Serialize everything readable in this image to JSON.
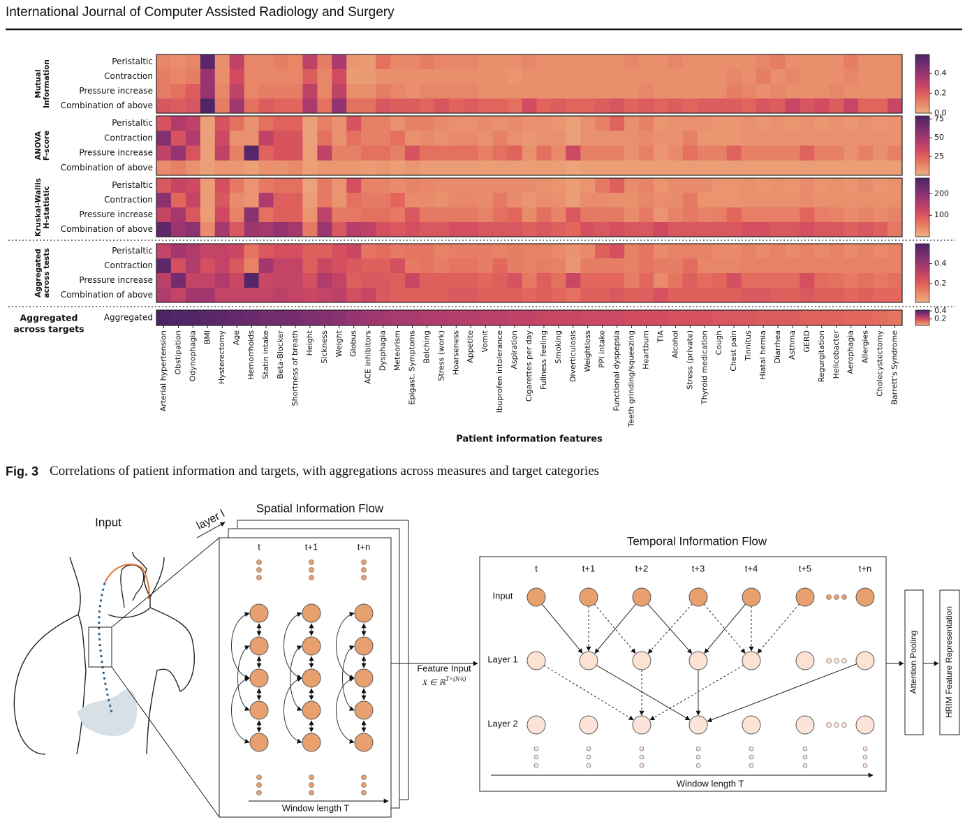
{
  "header": {
    "journal": "International Journal of Computer Assisted Radiology and Surgery"
  },
  "chart_data": [
    {
      "type": "heatmap",
      "group_label": [
        "Mutual",
        "Information"
      ],
      "colormap": "flare",
      "rows": [
        "Peristaltic",
        "Contraction",
        "Pressure increase",
        "Combination of above"
      ],
      "clim": [
        0,
        0.59
      ],
      "cticks": [
        {
          "value": 0,
          "label": "0.0"
        },
        0.2,
        0.4
      ],
      "values": [
        [
          0.1,
          0.08,
          0.1,
          0.55,
          0.08,
          0.3,
          0.1,
          0.1,
          0.12,
          0.1,
          0.3,
          0.12,
          0.35,
          0.06,
          0.05,
          0.15,
          0.1,
          0.1,
          0.12,
          0.1,
          0.1,
          0.1,
          0.08,
          0.08,
          0.08,
          0.1,
          0.08,
          0.08,
          0.08,
          0.08,
          0.08,
          0.08,
          0.1,
          0.08,
          0.08,
          0.1,
          0.08,
          0.08,
          0.08,
          0.08,
          0.08,
          0.1,
          0.12,
          0.08,
          0.08,
          0.08,
          0.08,
          0.12,
          0.08,
          0.08,
          0.08
        ],
        [
          0.12,
          0.1,
          0.12,
          0.4,
          0.08,
          0.25,
          0.1,
          0.1,
          0.1,
          0.1,
          0.2,
          0.1,
          0.25,
          0.05,
          0.05,
          0.08,
          0.08,
          0.08,
          0.08,
          0.08,
          0.08,
          0.08,
          0.08,
          0.08,
          0.06,
          0.08,
          0.08,
          0.08,
          0.08,
          0.08,
          0.08,
          0.08,
          0.08,
          0.08,
          0.08,
          0.08,
          0.08,
          0.08,
          0.08,
          0.1,
          0.08,
          0.12,
          0.08,
          0.1,
          0.08,
          0.08,
          0.08,
          0.1,
          0.08,
          0.08,
          0.08
        ],
        [
          0.12,
          0.15,
          0.2,
          0.4,
          0.1,
          0.3,
          0.1,
          0.12,
          0.12,
          0.12,
          0.3,
          0.1,
          0.3,
          0.08,
          0.08,
          0.12,
          0.1,
          0.08,
          0.1,
          0.1,
          0.1,
          0.1,
          0.08,
          0.08,
          0.08,
          0.08,
          0.08,
          0.08,
          0.08,
          0.08,
          0.08,
          0.08,
          0.08,
          0.1,
          0.08,
          0.08,
          0.08,
          0.08,
          0.08,
          0.12,
          0.1,
          0.08,
          0.1,
          0.08,
          0.08,
          0.08,
          0.1,
          0.08,
          0.08,
          0.08,
          0.08
        ],
        [
          0.22,
          0.2,
          0.22,
          0.58,
          0.12,
          0.38,
          0.15,
          0.2,
          0.18,
          0.18,
          0.35,
          0.15,
          0.42,
          0.15,
          0.15,
          0.22,
          0.2,
          0.2,
          0.18,
          0.22,
          0.18,
          0.2,
          0.18,
          0.18,
          0.15,
          0.25,
          0.18,
          0.2,
          0.18,
          0.18,
          0.2,
          0.22,
          0.18,
          0.2,
          0.18,
          0.2,
          0.18,
          0.2,
          0.2,
          0.2,
          0.18,
          0.22,
          0.2,
          0.28,
          0.22,
          0.25,
          0.2,
          0.28,
          0.18,
          0.18,
          0.28
        ]
      ]
    },
    {
      "type": "heatmap",
      "group_label": [
        "ANOVA",
        "F-score"
      ],
      "colormap": "flare",
      "rows": [
        "Peristaltic",
        "Contraction",
        "Pressure increase",
        "Combination of above"
      ],
      "clim": [
        0,
        79
      ],
      "cticks": [
        25,
        50,
        75
      ],
      "values": [
        [
          30,
          45,
          40,
          5,
          30,
          20,
          10,
          20,
          25,
          25,
          5,
          15,
          10,
          30,
          15,
          15,
          10,
          15,
          15,
          12,
          10,
          10,
          12,
          10,
          12,
          10,
          10,
          8,
          5,
          10,
          15,
          25,
          10,
          15,
          8,
          10,
          10,
          10,
          8,
          8,
          10,
          8,
          10,
          8,
          10,
          8,
          10,
          8,
          10,
          8,
          10
        ],
        [
          60,
          30,
          45,
          5,
          35,
          10,
          10,
          40,
          30,
          30,
          5,
          20,
          10,
          20,
          15,
          15,
          20,
          10,
          12,
          10,
          12,
          12,
          10,
          15,
          10,
          8,
          10,
          10,
          5,
          10,
          10,
          10,
          10,
          12,
          10,
          10,
          15,
          8,
          8,
          8,
          10,
          10,
          10,
          10,
          10,
          10,
          10,
          10,
          10,
          10,
          10
        ],
        [
          40,
          55,
          30,
          5,
          40,
          15,
          75,
          25,
          30,
          30,
          5,
          40,
          15,
          15,
          20,
          20,
          15,
          30,
          20,
          20,
          20,
          20,
          15,
          20,
          25,
          10,
          20,
          12,
          35,
          15,
          15,
          15,
          10,
          15,
          8,
          12,
          20,
          15,
          15,
          25,
          15,
          15,
          15,
          15,
          25,
          15,
          15,
          10,
          15,
          10,
          15
        ],
        [
          12,
          15,
          10,
          5,
          8,
          8,
          5,
          10,
          10,
          12,
          5,
          8,
          8,
          8,
          6,
          8,
          6,
          8,
          6,
          6,
          6,
          6,
          6,
          6,
          6,
          6,
          6,
          6,
          4,
          6,
          6,
          6,
          6,
          6,
          6,
          6,
          6,
          6,
          6,
          6,
          6,
          6,
          6,
          6,
          6,
          6,
          6,
          6,
          6,
          6,
          6
        ]
      ]
    },
    {
      "type": "heatmap",
      "group_label": [
        "Kruskal-Wallis",
        "H-statistic"
      ],
      "colormap": "flare",
      "rows": [
        "Peristaltic",
        "Contraction",
        "Pressure increase",
        "Combination of above"
      ],
      "clim": [
        0,
        273
      ],
      "cticks": [
        100,
        200
      ],
      "values": [
        [
          100,
          130,
          120,
          20,
          110,
          60,
          30,
          60,
          70,
          70,
          15,
          60,
          30,
          110,
          50,
          50,
          40,
          50,
          45,
          40,
          40,
          40,
          40,
          40,
          40,
          40,
          35,
          30,
          20,
          30,
          60,
          90,
          40,
          50,
          30,
          40,
          40,
          40,
          30,
          30,
          35,
          30,
          35,
          30,
          40,
          30,
          35,
          30,
          40,
          30,
          35
        ],
        [
          200,
          80,
          130,
          20,
          100,
          40,
          30,
          160,
          90,
          90,
          20,
          60,
          30,
          70,
          60,
          60,
          80,
          40,
          40,
          35,
          45,
          45,
          40,
          60,
          40,
          30,
          40,
          35,
          20,
          40,
          40,
          35,
          35,
          45,
          40,
          40,
          60,
          30,
          30,
          30,
          35,
          35,
          35,
          35,
          40,
          35,
          35,
          35,
          35,
          35,
          35
        ],
        [
          130,
          170,
          100,
          20,
          120,
          50,
          200,
          70,
          90,
          90,
          30,
          140,
          60,
          60,
          70,
          70,
          60,
          100,
          60,
          60,
          60,
          60,
          50,
          70,
          80,
          40,
          70,
          50,
          100,
          60,
          60,
          60,
          40,
          60,
          30,
          50,
          60,
          50,
          55,
          80,
          55,
          55,
          55,
          55,
          80,
          55,
          50,
          40,
          50,
          40,
          50
        ],
        [
          250,
          180,
          200,
          40,
          170,
          100,
          180,
          170,
          190,
          170,
          60,
          180,
          100,
          150,
          140,
          110,
          100,
          110,
          100,
          100,
          110,
          110,
          100,
          100,
          100,
          90,
          100,
          90,
          80,
          110,
          100,
          110,
          100,
          100,
          120,
          100,
          100,
          100,
          100,
          100,
          110,
          110,
          100,
          100,
          110,
          100,
          100,
          90,
          100,
          90,
          60
        ]
      ]
    },
    {
      "type": "heatmap",
      "group_label": [
        "Aggregated",
        "across tests"
      ],
      "colormap": "flare",
      "rows": [
        "Peristaltic",
        "Contraction",
        "Pressure increase",
        "Combination of above"
      ],
      "clim": [
        0.01,
        0.6
      ],
      "cticks": [
        0.2,
        0.4
      ],
      "values": [
        [
          0.3,
          0.38,
          0.35,
          0.3,
          0.3,
          0.28,
          0.15,
          0.22,
          0.25,
          0.25,
          0.2,
          0.2,
          0.25,
          0.28,
          0.15,
          0.17,
          0.14,
          0.15,
          0.15,
          0.12,
          0.13,
          0.13,
          0.13,
          0.12,
          0.13,
          0.12,
          0.12,
          0.1,
          0.08,
          0.1,
          0.2,
          0.25,
          0.12,
          0.15,
          0.1,
          0.12,
          0.12,
          0.12,
          0.1,
          0.1,
          0.12,
          0.1,
          0.12,
          0.1,
          0.12,
          0.1,
          0.12,
          0.1,
          0.12,
          0.1,
          0.12
        ],
        [
          0.55,
          0.25,
          0.35,
          0.25,
          0.3,
          0.22,
          0.12,
          0.38,
          0.3,
          0.3,
          0.2,
          0.28,
          0.25,
          0.22,
          0.2,
          0.2,
          0.25,
          0.14,
          0.15,
          0.13,
          0.15,
          0.15,
          0.13,
          0.18,
          0.13,
          0.12,
          0.13,
          0.12,
          0.07,
          0.13,
          0.13,
          0.13,
          0.12,
          0.15,
          0.13,
          0.13,
          0.17,
          0.11,
          0.11,
          0.11,
          0.12,
          0.12,
          0.12,
          0.12,
          0.12,
          0.12,
          0.12,
          0.12,
          0.12,
          0.12,
          0.12
        ],
        [
          0.32,
          0.5,
          0.3,
          0.3,
          0.35,
          0.28,
          0.58,
          0.28,
          0.3,
          0.3,
          0.25,
          0.35,
          0.3,
          0.2,
          0.22,
          0.22,
          0.2,
          0.28,
          0.2,
          0.2,
          0.2,
          0.2,
          0.18,
          0.2,
          0.24,
          0.14,
          0.2,
          0.16,
          0.28,
          0.18,
          0.18,
          0.18,
          0.13,
          0.18,
          0.1,
          0.15,
          0.2,
          0.17,
          0.18,
          0.25,
          0.17,
          0.17,
          0.17,
          0.17,
          0.25,
          0.17,
          0.16,
          0.14,
          0.16,
          0.14,
          0.16
        ],
        [
          0.35,
          0.3,
          0.38,
          0.38,
          0.3,
          0.3,
          0.3,
          0.3,
          0.32,
          0.3,
          0.28,
          0.3,
          0.32,
          0.25,
          0.28,
          0.22,
          0.2,
          0.2,
          0.2,
          0.2,
          0.22,
          0.22,
          0.2,
          0.2,
          0.2,
          0.18,
          0.2,
          0.18,
          0.16,
          0.2,
          0.2,
          0.22,
          0.2,
          0.2,
          0.24,
          0.2,
          0.2,
          0.2,
          0.2,
          0.2,
          0.22,
          0.22,
          0.2,
          0.2,
          0.22,
          0.2,
          0.2,
          0.18,
          0.2,
          0.18,
          0.18
        ]
      ]
    },
    {
      "type": "heatmap",
      "group_label": [
        "Aggregated",
        "across targets"
      ],
      "colormap": "flare",
      "rows": [
        "Aggregated"
      ],
      "clim": [
        0.04,
        0.42
      ],
      "cticks": [
        0.2,
        0.4
      ],
      "values": [
        [
          0.42,
          0.41,
          0.41,
          0.4,
          0.39,
          0.38,
          0.37,
          0.36,
          0.36,
          0.35,
          0.34,
          0.33,
          0.32,
          0.3,
          0.29,
          0.28,
          0.27,
          0.27,
          0.26,
          0.26,
          0.25,
          0.25,
          0.24,
          0.24,
          0.23,
          0.23,
          0.22,
          0.22,
          0.22,
          0.21,
          0.21,
          0.21,
          0.2,
          0.2,
          0.2,
          0.19,
          0.19,
          0.19,
          0.18,
          0.18,
          0.18,
          0.17,
          0.17,
          0.17,
          0.16,
          0.16,
          0.16,
          0.15,
          0.15,
          0.14,
          0.13
        ]
      ],
      "categories": [
        "Arterial hypertension",
        "Obstipation",
        "Odynophagia",
        "BMI",
        "Hysterectomy",
        "Age",
        "Hemorrhoids",
        "Statin intake",
        "Beta-Blocker",
        "Shortness of breath",
        "Height",
        "Sickness",
        "Weight",
        "Globus",
        "ACE inhibitors",
        "Dysphagia",
        "Meteorism",
        "Epigast. Symptoms",
        "Belching",
        "Stress (work)",
        "Hoarseness",
        "Appetite",
        "Vomit",
        "Ibuprofen intolerance",
        "Aspiration",
        "Cigarettes per day",
        "Fullness feeling",
        "Smoking",
        "Diverticulosis",
        "Weightloss",
        "PPI intake",
        "Functional dyspepsia",
        "Teeth grinding/squeezing",
        "Heartburn",
        "TIA",
        "Alcohol",
        "Stress (private)",
        "Thyroid medication",
        "Cough",
        "Chest pain",
        "Tinnitus",
        "Hiatal hernia",
        "Diarrhea",
        "Asthma",
        "GERD",
        "Regurgitation",
        "Helicobacter",
        "Aerophagia",
        "Allergies",
        "Cholecystectomy",
        "Barrett's Syndrome"
      ],
      "xlabel": "Patient information features"
    }
  ],
  "caption": {
    "label": "Fig. 3",
    "text": "Correlations of patient information and targets, with aggregations across measures and target categories"
  },
  "diagram": {
    "input_label": "Input",
    "layer_label": "layer l",
    "spatial_title": "Spatial  Information Flow",
    "spatial_steps": [
      "t",
      "t+1",
      "t+n"
    ],
    "spatial_axis": "Window length T",
    "feature_input": "Feature Input",
    "feature_symbol": "X ∈ ℝ",
    "feature_exponent": "T×(N·k)",
    "temporal_title": "Temporal Information Flow",
    "temporal_steps": [
      "t",
      "t+1",
      "t+2",
      "t+3",
      "t+4",
      "t+5",
      "t+n"
    ],
    "temporal_rows": [
      "Input",
      "Layer 1",
      "Layer 2"
    ],
    "temporal_axis": "Window length T",
    "pooling": "Attention Pooling",
    "output": "HRIM Feature Representation"
  }
}
